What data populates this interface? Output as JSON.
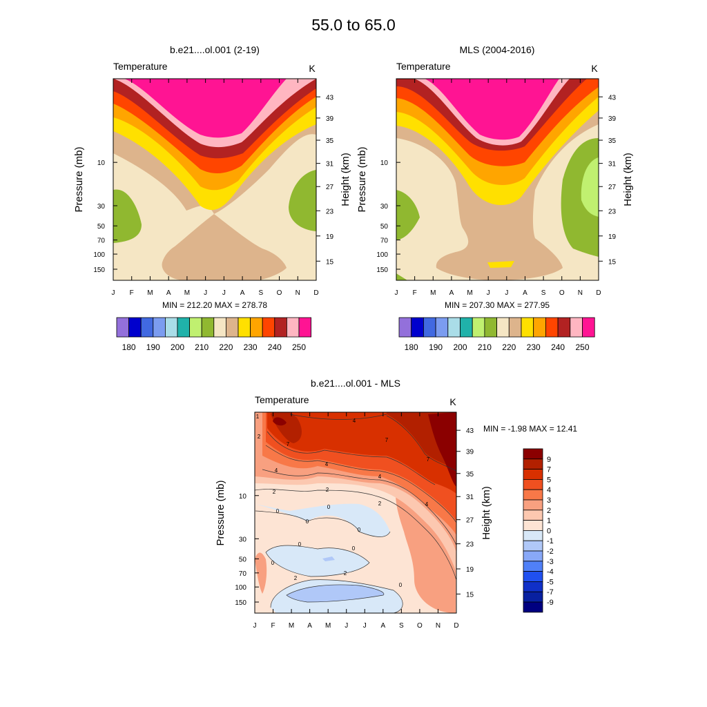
{
  "page": {
    "title": "55.0 to  65.0"
  },
  "chart_data": [
    {
      "id": "model",
      "type": "heatmap",
      "title": "b.e21....ol.001 (2-19)",
      "variable": "Temperature",
      "units": "K",
      "xlabel": "",
      "ylabel": "Pressure (mb)",
      "y2label": "Height (km)",
      "x_ticks": [
        "J",
        "F",
        "M",
        "A",
        "M",
        "J",
        "J",
        "A",
        "S",
        "O",
        "N",
        "D"
      ],
      "y_ticks": [
        "10",
        "30",
        "50",
        "70",
        "100",
        "150"
      ],
      "y2_ticks": [
        "43",
        "39",
        "35",
        "31",
        "27",
        "23",
        "19",
        "15"
      ],
      "stats": "MIN = 212.20  MAX = 278.78",
      "min": 212.2,
      "max": 278.78
    },
    {
      "id": "mls",
      "type": "heatmap",
      "title": "MLS (2004-2016)",
      "variable": "Temperature",
      "units": "K",
      "xlabel": "",
      "ylabel": "Pressure (mb)",
      "y2label": "Height (km)",
      "x_ticks": [
        "J",
        "F",
        "M",
        "A",
        "M",
        "J",
        "J",
        "A",
        "S",
        "O",
        "N",
        "D"
      ],
      "y_ticks": [
        "10",
        "30",
        "50",
        "70",
        "100",
        "150"
      ],
      "y2_ticks": [
        "43",
        "39",
        "35",
        "31",
        "27",
        "23",
        "19",
        "15"
      ],
      "stats": "MIN = 207.30  MAX = 277.95",
      "min": 207.3,
      "max": 277.95
    },
    {
      "id": "diff",
      "type": "heatmap",
      "title": "b.e21....ol.001 - MLS",
      "variable": "Temperature",
      "units": "K",
      "xlabel": "",
      "ylabel": "Pressure (mb)",
      "y2label": "Height (km)",
      "x_ticks": [
        "J",
        "F",
        "M",
        "A",
        "M",
        "J",
        "J",
        "A",
        "S",
        "O",
        "N",
        "D"
      ],
      "y_ticks": [
        "10",
        "30",
        "50",
        "70",
        "100",
        "150"
      ],
      "y2_ticks": [
        "43",
        "39",
        "35",
        "31",
        "27",
        "23",
        "19",
        "15"
      ],
      "stats": "MIN =  -1.98  MAX =  12.41",
      "min": -1.98,
      "max": 12.41,
      "contour_labels": [
        "2",
        "4",
        "4",
        "2",
        "0",
        "0",
        "0",
        "0",
        "0",
        "0",
        "0",
        "2",
        "2",
        "2",
        "4",
        "4",
        "4",
        "7",
        "7",
        "7",
        "1",
        "2",
        "0"
      ]
    }
  ],
  "legends": {
    "temperature": {
      "labels": [
        "180",
        "190",
        "200",
        "210",
        "220",
        "230",
        "240",
        "250"
      ],
      "colors": [
        "#9370db",
        "#0000cd",
        "#4169e1",
        "#7b9cf0",
        "#aadde8",
        "#20b2aa",
        "#c0f070",
        "#90b830",
        "#f5e6c4",
        "#ddb48c",
        "#ffe000",
        "#ffa500",
        "#ff4500",
        "#b22222",
        "#ffb6c1",
        "#ff1493"
      ]
    },
    "difference": {
      "labels": [
        "9",
        "7",
        "5",
        "4",
        "3",
        "2",
        "1",
        "0",
        "-1",
        "-2",
        "-3",
        "-4",
        "-5",
        "-7",
        "-9"
      ],
      "colors": [
        "#8b0000",
        "#b22000",
        "#d83000",
        "#f05020",
        "#f87848",
        "#f8a080",
        "#fcc8b0",
        "#fde4d4",
        "#d8e8f8",
        "#b0c8f8",
        "#88a8f8",
        "#5080f8",
        "#2050f0",
        "#1030c8",
        "#0820a0",
        "#000080"
      ]
    }
  }
}
